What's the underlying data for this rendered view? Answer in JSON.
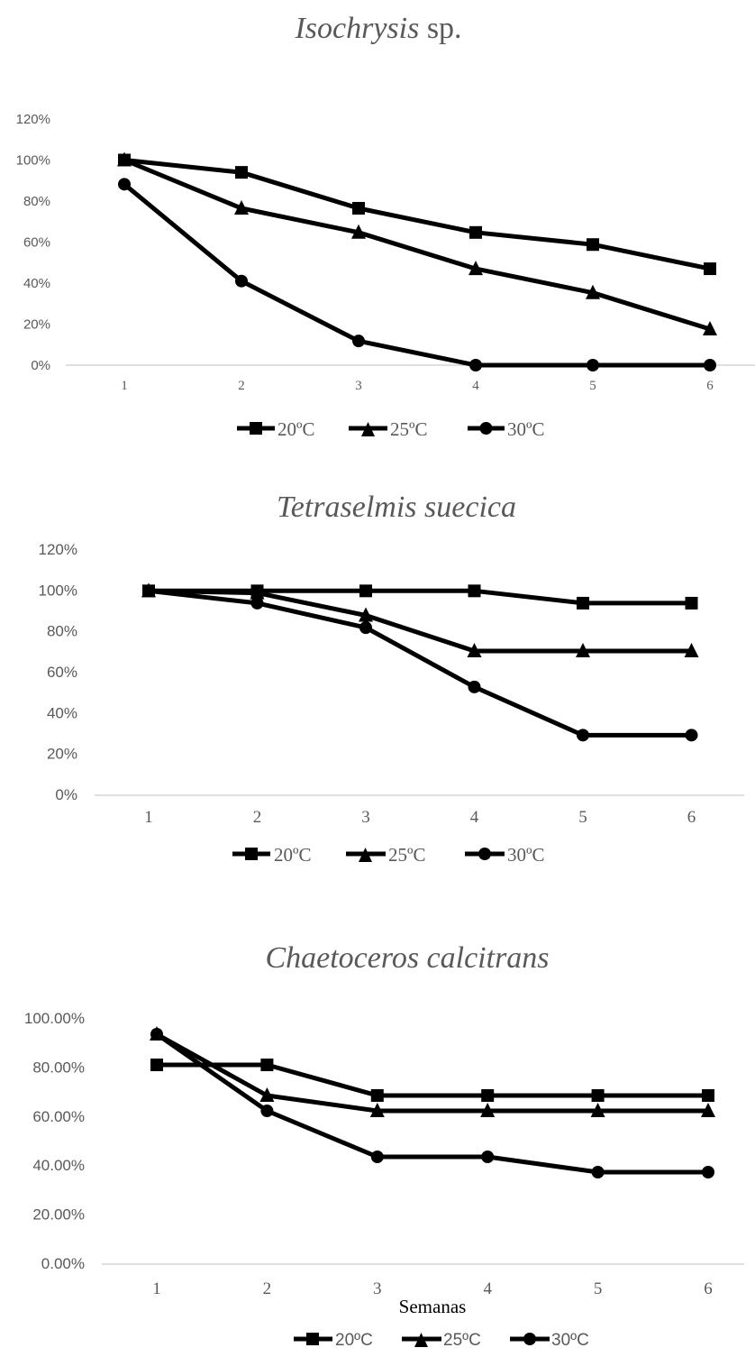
{
  "colors": {
    "series": "#000000",
    "axis": "#bfbfbf",
    "text": "#595959"
  },
  "chart_data": [
    {
      "type": "line",
      "title": "Isochrysis sp.",
      "title_italic_part": "Isochrysis",
      "title_plain_part": " sp.",
      "x": [
        1,
        2,
        3,
        4,
        5,
        6
      ],
      "xlabel": "",
      "ylim": [
        0,
        1.2
      ],
      "y_ticks": [
        "0%",
        "20%",
        "40%",
        "60%",
        "80%",
        "100%",
        "120%"
      ],
      "grid": false,
      "legend_position": "bottom",
      "series": [
        {
          "name": "20ºC",
          "marker": "square",
          "values": [
            1.0,
            0.94,
            0.765,
            0.647,
            0.588,
            0.47
          ]
        },
        {
          "name": "25ºC",
          "marker": "triangle",
          "values": [
            1.0,
            0.765,
            0.647,
            0.47,
            0.353,
            0.176
          ]
        },
        {
          "name": "30ºC",
          "marker": "circle",
          "values": [
            0.882,
            0.41,
            0.118,
            0.0,
            0.0,
            0.0
          ]
        }
      ]
    },
    {
      "type": "line",
      "title": "Tetraselmis suecica",
      "x": [
        1,
        2,
        3,
        4,
        5,
        6
      ],
      "xlabel": "",
      "ylim": [
        0,
        1.2
      ],
      "y_ticks": [
        "0%",
        "20%",
        "40%",
        "60%",
        "80%",
        "100%",
        "120%"
      ],
      "grid": false,
      "legend_position": "bottom",
      "series": [
        {
          "name": "20ºC",
          "marker": "square",
          "values": [
            1.0,
            1.0,
            1.0,
            1.0,
            0.94,
            0.94
          ]
        },
        {
          "name": "25ºC",
          "marker": "triangle",
          "values": [
            1.0,
            0.99,
            0.88,
            0.706,
            0.706,
            0.706
          ]
        },
        {
          "name": "30ºC",
          "marker": "circle",
          "values": [
            1.0,
            0.94,
            0.82,
            0.53,
            0.294,
            0.294
          ]
        }
      ]
    },
    {
      "type": "line",
      "title": "Chaetoceros calcitrans",
      "x": [
        1,
        2,
        3,
        4,
        5,
        6
      ],
      "xlabel": "Semanas",
      "ylim": [
        0,
        1.0
      ],
      "y_ticks": [
        "0.00%",
        "20.00%",
        "40.00%",
        "60.00%",
        "80.00%",
        "100.00%"
      ],
      "grid": false,
      "legend_position": "bottom",
      "series": [
        {
          "name": "20ºC",
          "marker": "square",
          "values": [
            0.8125,
            0.8125,
            0.6875,
            0.6875,
            0.6875,
            0.6875
          ]
        },
        {
          "name": "25ºC",
          "marker": "triangle",
          "values": [
            0.9375,
            0.6875,
            0.625,
            0.625,
            0.625,
            0.625
          ]
        },
        {
          "name": "30ºC",
          "marker": "circle",
          "values": [
            0.9375,
            0.625,
            0.4375,
            0.4375,
            0.375,
            0.375
          ]
        }
      ]
    }
  ]
}
